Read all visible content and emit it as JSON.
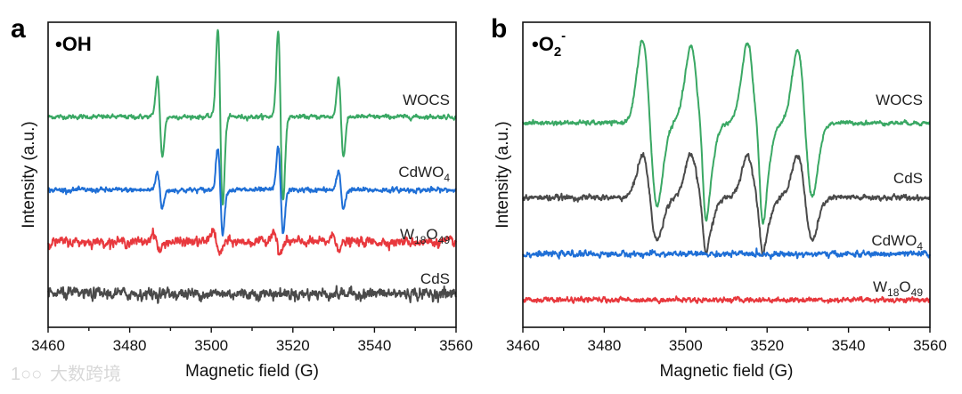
{
  "watermark": "大数跨境",
  "chart_data": [
    {
      "type": "line",
      "panel": "a",
      "title_parts": [
        {
          "text": "•OH"
        }
      ],
      "xlabel": "Magnetic field (G)",
      "ylabel": "Intensity (a.u.)",
      "xlim": [
        3460,
        3560
      ],
      "xticks": [
        3460,
        3480,
        3500,
        3520,
        3540,
        3560
      ],
      "ylim": [
        0,
        100
      ],
      "grid": false,
      "series": [
        {
          "name": "WOCS",
          "label": [
            {
              "text": "WOCS"
            }
          ],
          "color": "#3aa864",
          "baseline": 69,
          "noise": 0.6,
          "lines": [
            [
              3487.4,
              13,
              0.6
            ],
            [
              3502.2,
              29,
              0.6
            ],
            [
              3517.0,
              28,
              0.6
            ],
            [
              3531.8,
              13,
              0.6
            ]
          ]
        },
        {
          "name": "CdWO4",
          "label": [
            {
              "text": "CdWO"
            },
            {
              "text": "4",
              "sub": true
            }
          ],
          "color": "#1f6fd6",
          "baseline": 45,
          "noise": 0.7,
          "lines": [
            [
              3487.4,
              6,
              0.6
            ],
            [
              3502.2,
              14,
              0.6
            ],
            [
              3517.0,
              14,
              0.6
            ],
            [
              3531.8,
              6,
              0.6
            ]
          ]
        },
        {
          "name": "W18O49",
          "label": [
            {
              "text": "W"
            },
            {
              "text": "18",
              "sub": true
            },
            {
              "text": "O"
            },
            {
              "text": "49",
              "sub": true
            }
          ],
          "color": "#e8383d",
          "baseline": 28,
          "noise": 1.3,
          "lines": [
            [
              3486.6,
              3,
              0.8
            ],
            [
              3501.2,
              4,
              0.8
            ],
            [
              3516.0,
              4,
              0.8
            ],
            [
              3530.6,
              2,
              0.8
            ]
          ]
        },
        {
          "name": "CdS",
          "label": [
            {
              "text": "CdS"
            }
          ],
          "color": "#4a4a4a",
          "baseline": 11,
          "noise": 1.6,
          "lines": []
        }
      ]
    },
    {
      "type": "line",
      "panel": "b",
      "title_parts": [
        {
          "text": "•O"
        },
        {
          "text": "2",
          "sub": true
        },
        {
          "text": "-",
          "sup": true
        }
      ],
      "xlabel": "Magnetic field (G)",
      "ylabel": "Intensity (a.u.)",
      "xlim": [
        3460,
        3560
      ],
      "xticks": [
        3460,
        3480,
        3500,
        3520,
        3540,
        3560
      ],
      "ylim": [
        0,
        100
      ],
      "grid": false,
      "series": [
        {
          "name": "WOCS",
          "label": [
            {
              "text": "WOCS"
            }
          ],
          "color": "#3aa864",
          "baseline": 67,
          "noise": 0.6,
          "lines": [
            [
              3491.2,
              27,
              1.8
            ],
            [
              3503.2,
              25,
              1.9
            ],
            [
              3517.1,
              26,
              1.9
            ],
            [
              3529.3,
              24,
              1.8
            ],
            [
              3504.3,
              7,
              0.7
            ],
            [
              3518.3,
              7,
              0.7
            ]
          ]
        },
        {
          "name": "CdS",
          "label": [
            {
              "text": "CdS"
            }
          ],
          "color": "#4a4a4a",
          "baseline": 42.5,
          "noise": 0.8,
          "lines": [
            [
              3491.2,
              14,
              1.8
            ],
            [
              3503.2,
              14,
              1.9
            ],
            [
              3517.1,
              14,
              1.9
            ],
            [
              3529.3,
              14,
              1.8
            ],
            [
              3504.3,
              4,
              0.7
            ],
            [
              3518.3,
              4,
              0.7
            ]
          ]
        },
        {
          "name": "CdWO4",
          "label": [
            {
              "text": "CdWO"
            },
            {
              "text": "4",
              "sub": true
            }
          ],
          "color": "#1f6fd6",
          "baseline": 24,
          "noise": 0.8,
          "lines": []
        },
        {
          "name": "W18O49",
          "label": [
            {
              "text": "W"
            },
            {
              "text": "18",
              "sub": true
            },
            {
              "text": "O"
            },
            {
              "text": "49",
              "sub": true
            }
          ],
          "color": "#e8383d",
          "baseline": 9,
          "noise": 0.7,
          "lines": []
        }
      ]
    }
  ]
}
